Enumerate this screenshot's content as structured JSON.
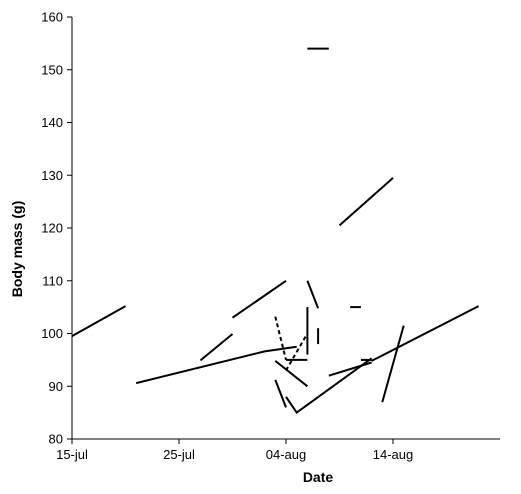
{
  "chart_data": {
    "type": "line",
    "title": "",
    "xlabel": "Date",
    "ylabel": "Body mass (g)",
    "x_axis": {
      "type": "date",
      "range": [
        "2014-07-15",
        "2014-08-24"
      ],
      "ticks": [
        {
          "date": "2014-07-15",
          "label": "15-jul"
        },
        {
          "date": "2014-07-25",
          "label": "25-jul"
        },
        {
          "date": "2014-08-04",
          "label": "04-aug"
        },
        {
          "date": "2014-08-14",
          "label": "14-aug"
        }
      ]
    },
    "y_axis": {
      "range": [
        80,
        160
      ],
      "ticks": [
        80,
        90,
        100,
        110,
        120,
        130,
        140,
        150,
        160
      ]
    },
    "grid": false,
    "legend": "none",
    "line_color": "#000000",
    "series": [
      {
        "style": "solid",
        "points": [
          {
            "x": "2014-07-15",
            "y": 99.5
          },
          {
            "x": "2014-07-20",
            "y": 105.2
          }
        ]
      },
      {
        "style": "solid",
        "points": [
          {
            "x": "2014-07-21",
            "y": 90.6
          },
          {
            "x": "2014-08-02",
            "y": 96.6
          },
          {
            "x": "2014-08-05",
            "y": 97.5
          }
        ]
      },
      {
        "style": "solid",
        "points": [
          {
            "x": "2014-07-27",
            "y": 94.9
          },
          {
            "x": "2014-07-30",
            "y": 99.9
          }
        ]
      },
      {
        "style": "solid",
        "points": [
          {
            "x": "2014-07-30",
            "y": 103.0
          },
          {
            "x": "2014-08-04",
            "y": 110.0
          }
        ]
      },
      {
        "style": "solid",
        "points": [
          {
            "x": "2014-08-03",
            "y": 91.2
          },
          {
            "x": "2014-08-04",
            "y": 86.0
          }
        ]
      },
      {
        "style": "solid",
        "points": [
          {
            "x": "2014-08-03",
            "y": 94.8
          },
          {
            "x": "2014-08-06",
            "y": 90.0
          }
        ]
      },
      {
        "style": "solid",
        "points": [
          {
            "x": "2014-08-04",
            "y": 88.0
          },
          {
            "x": "2014-08-05",
            "y": 85.0
          },
          {
            "x": "2014-08-12",
            "y": 95.3
          }
        ]
      },
      {
        "style": "dashed",
        "points": [
          {
            "x": "2014-08-03",
            "y": 103.2
          },
          {
            "x": "2014-08-04",
            "y": 95.0
          }
        ]
      },
      {
        "style": "dashed",
        "points": [
          {
            "x": "2014-08-04",
            "y": 93.0
          },
          {
            "x": "2014-08-06",
            "y": 100.0
          }
        ]
      },
      {
        "style": "solid",
        "points": [
          {
            "x": "2014-08-04",
            "y": 95.0
          },
          {
            "x": "2014-08-06",
            "y": 95.0
          }
        ]
      },
      {
        "style": "solid",
        "points": [
          {
            "x": "2014-08-06",
            "y": 105.0
          },
          {
            "x": "2014-08-06",
            "y": 96.0
          }
        ]
      },
      {
        "style": "solid",
        "points": [
          {
            "x": "2014-08-06",
            "y": 110.0
          },
          {
            "x": "2014-08-07",
            "y": 104.8
          }
        ]
      },
      {
        "style": "solid",
        "points": [
          {
            "x": "2014-08-07",
            "y": 101.0
          },
          {
            "x": "2014-08-07",
            "y": 98.0
          }
        ]
      },
      {
        "style": "solid",
        "points": [
          {
            "x": "2014-08-06",
            "y": 154.0
          },
          {
            "x": "2014-08-08",
            "y": 154.0
          }
        ]
      },
      {
        "style": "solid",
        "points": [
          {
            "x": "2014-08-09",
            "y": 120.5
          },
          {
            "x": "2014-08-14",
            "y": 129.5
          }
        ]
      },
      {
        "style": "solid",
        "points": [
          {
            "x": "2014-08-10",
            "y": 105.0
          },
          {
            "x": "2014-08-11",
            "y": 105.0
          }
        ]
      },
      {
        "style": "solid",
        "points": [
          {
            "x": "2014-08-08",
            "y": 92.0
          },
          {
            "x": "2014-08-12",
            "y": 94.5
          }
        ]
      },
      {
        "style": "solid",
        "points": [
          {
            "x": "2014-08-11",
            "y": 95.0
          },
          {
            "x": "2014-08-12",
            "y": 95.0
          }
        ]
      },
      {
        "style": "solid",
        "points": [
          {
            "x": "2014-08-13",
            "y": 87.0
          },
          {
            "x": "2014-08-15",
            "y": 101.5
          }
        ]
      },
      {
        "style": "solid",
        "points": [
          {
            "x": "2014-08-12",
            "y": 94.8
          },
          {
            "x": "2014-08-22",
            "y": 105.2
          }
        ]
      }
    ]
  }
}
